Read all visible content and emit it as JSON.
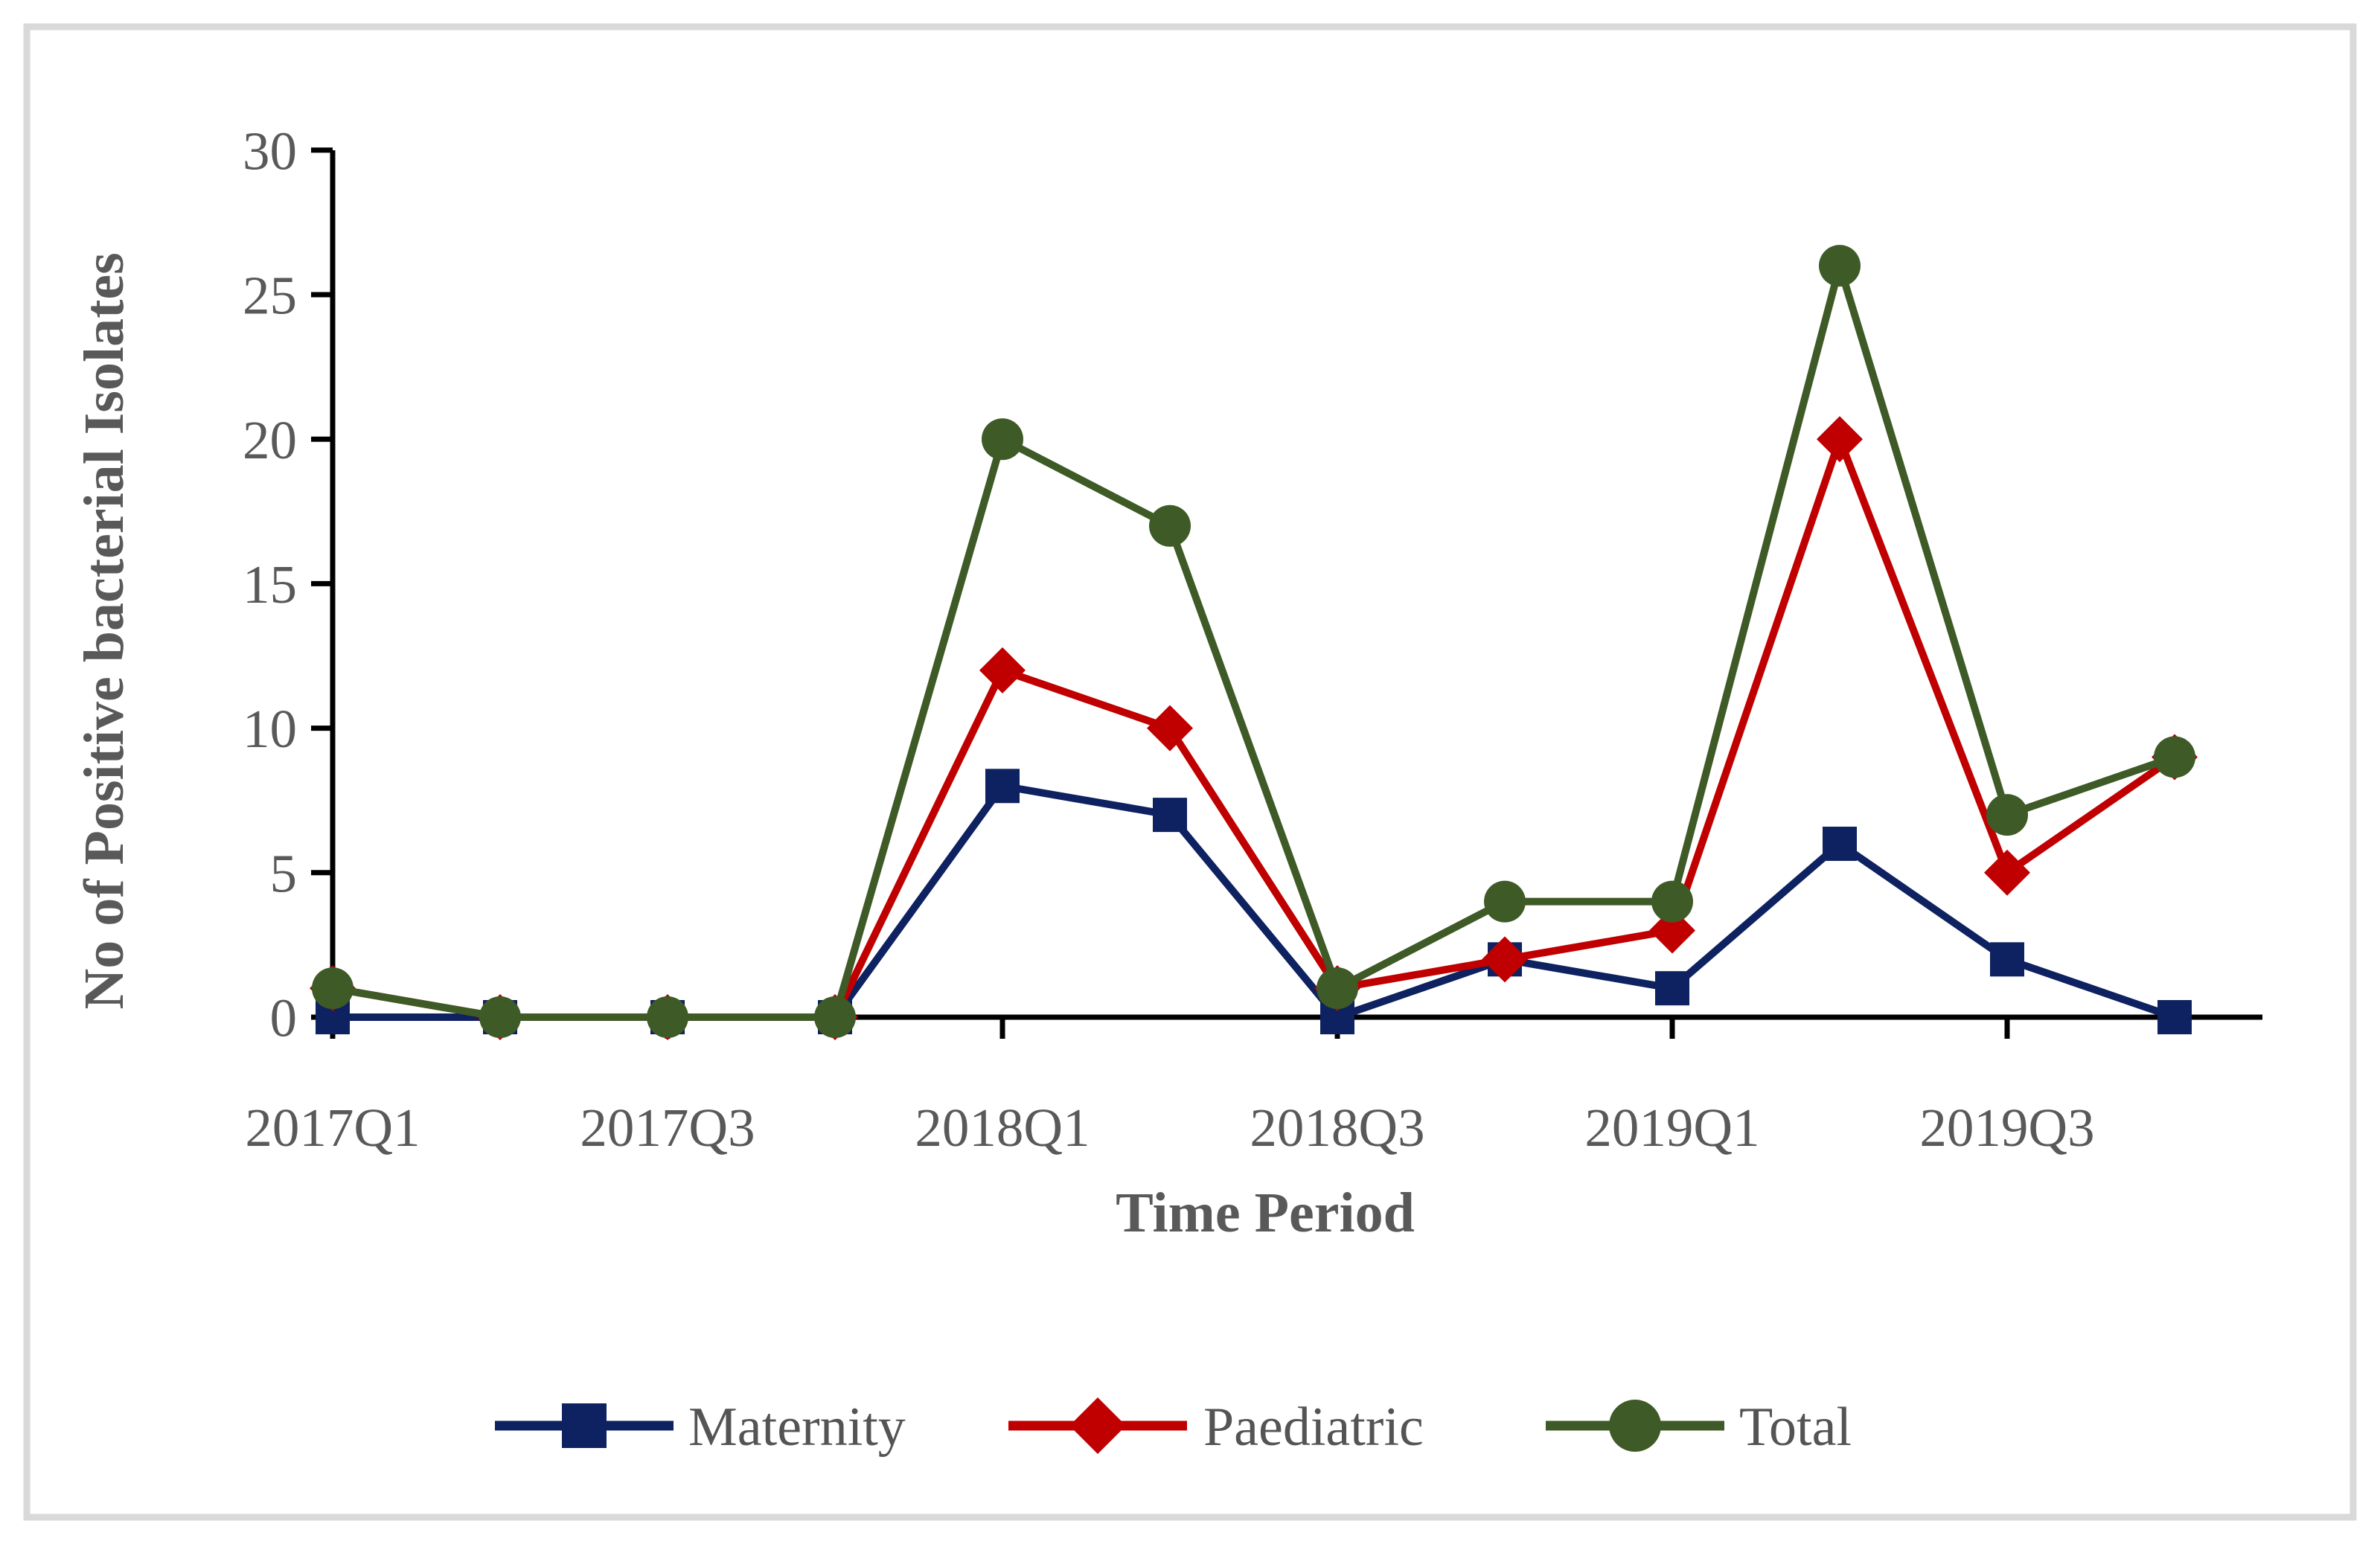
{
  "figure": {
    "background": "#FFFFFF",
    "border_color": "#D9D9D9",
    "axis_color": "#000000",
    "text_color": "#595959"
  },
  "chart_data": {
    "type": "line",
    "title": "",
    "xlabel": "Time Period",
    "ylabel": "No of Positive bacterial Isolates",
    "categories": [
      "2017Q1",
      "2017Q2",
      "2017Q3",
      "2017Q4",
      "2018Q1",
      "2018Q2",
      "2018Q3",
      "2018Q4",
      "2019Q1",
      "2019Q2",
      "2019Q3",
      "2019Q4"
    ],
    "x_tick_labels": [
      "2017Q1",
      "2017Q3",
      "2018Q1",
      "2018Q3",
      "2019Q1",
      "2019Q3"
    ],
    "x_tick_indices": [
      0,
      2,
      4,
      6,
      8,
      10
    ],
    "y_ticks": [
      0,
      5,
      10,
      15,
      20,
      25,
      30
    ],
    "ylim": [
      0,
      30
    ],
    "grid": false,
    "legend_position": "bottom",
    "series": [
      {
        "name": "Maternity",
        "marker": "square",
        "color": "#0E2160",
        "values": [
          0,
          0,
          0,
          0,
          8,
          7,
          0,
          2,
          1,
          6,
          2,
          0
        ]
      },
      {
        "name": "Paediatric",
        "marker": "diamond",
        "color": "#C00000",
        "values": [
          1,
          0,
          0,
          0,
          12,
          10,
          1,
          2,
          3,
          20,
          5,
          9
        ]
      },
      {
        "name": "Total",
        "marker": "circle",
        "color": "#3E5A26",
        "values": [
          1,
          0,
          0,
          0,
          20,
          17,
          1,
          4,
          4,
          26,
          7,
          9
        ]
      }
    ]
  }
}
